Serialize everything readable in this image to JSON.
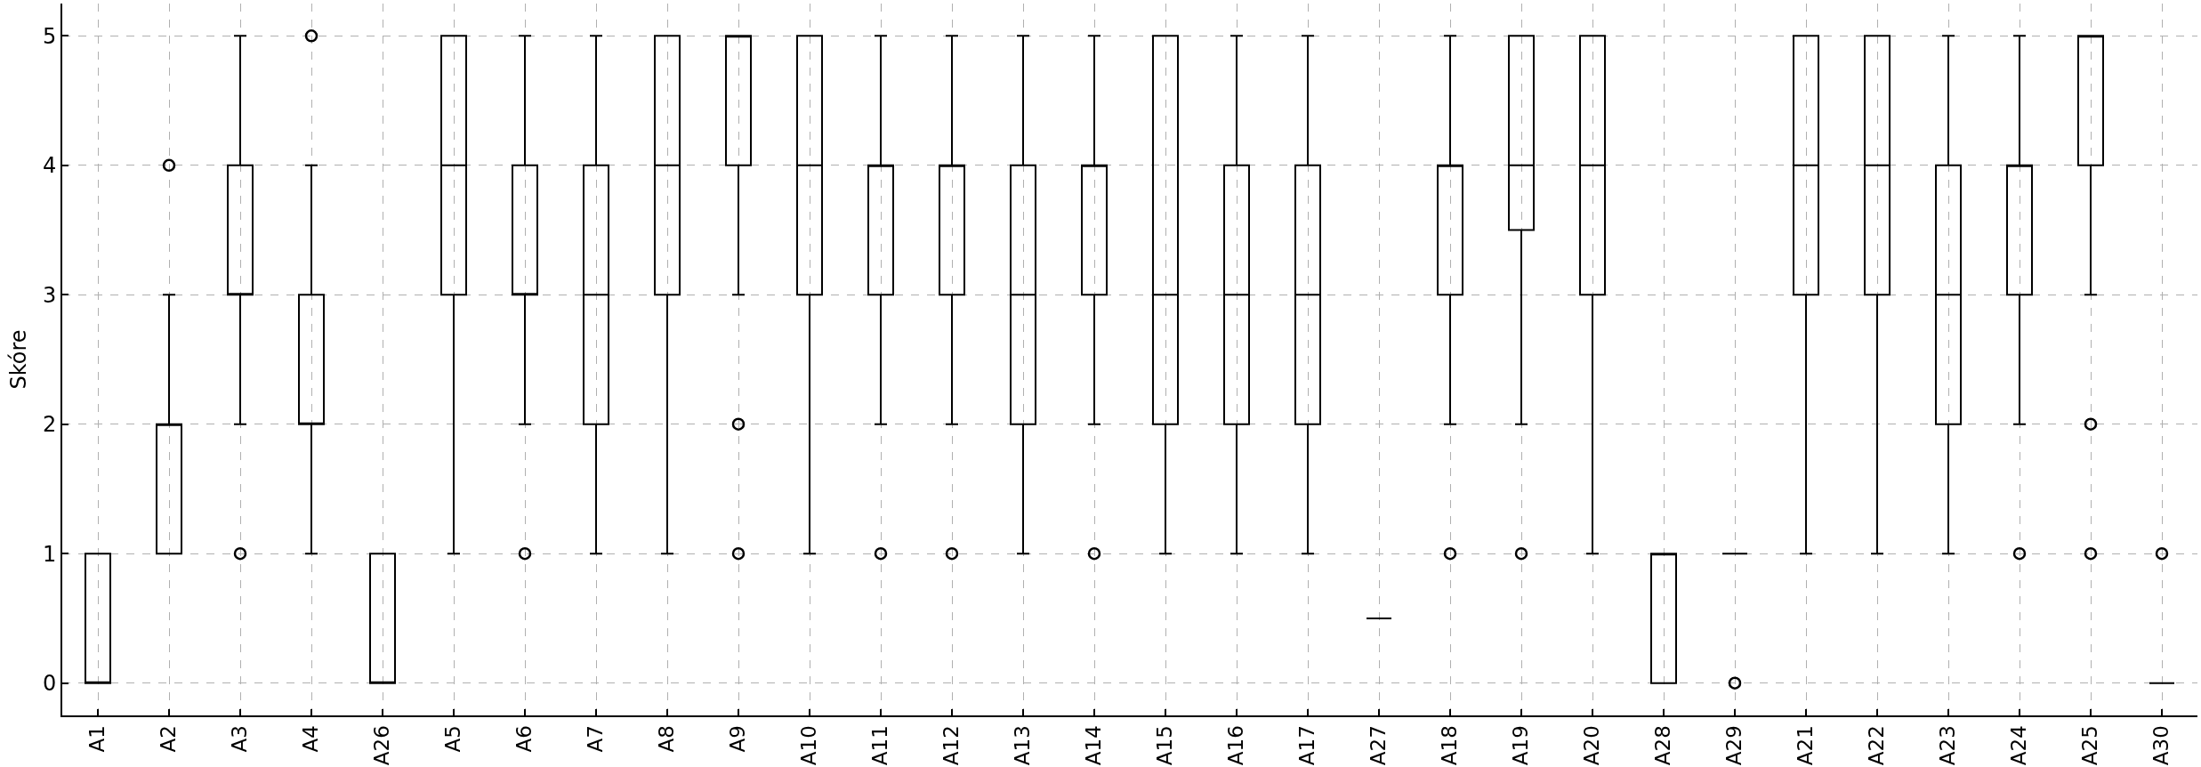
{
  "chart_data": {
    "type": "box",
    "ylabel": "Skóre",
    "color": "#000000",
    "marker": "circle",
    "categories": [
      "A1",
      "A2",
      "A3",
      "A4",
      "A26",
      "A5",
      "A6",
      "A7",
      "A8",
      "A9",
      "A10",
      "A11",
      "A12",
      "A13",
      "A14",
      "A15",
      "A16",
      "A17",
      "A27",
      "A18",
      "A19",
      "A20",
      "A28",
      "A29",
      "A21",
      "A22",
      "A23",
      "A24",
      "A25",
      "A30"
    ],
    "boxes": [
      {
        "low": 0,
        "q1": 0,
        "median": 0,
        "q3": 1,
        "high": 1
      },
      {
        "low": 1,
        "q1": 1,
        "median": 2,
        "q3": 2,
        "high": 3,
        "outliers": [
          4
        ]
      },
      {
        "low": 2,
        "q1": 3,
        "median": 3,
        "q3": 4,
        "high": 5,
        "outliers": [
          1
        ]
      },
      {
        "low": 1,
        "q1": 2,
        "median": 2,
        "q3": 3,
        "high": 4,
        "outliers": [
          5
        ]
      },
      {
        "low": 0,
        "q1": 0,
        "median": 0,
        "q3": 1,
        "high": 1
      },
      {
        "low": 1,
        "q1": 3,
        "median": 4,
        "q3": 5,
        "high": 5
      },
      {
        "low": 2,
        "q1": 3,
        "median": 3,
        "q3": 4,
        "high": 5,
        "outliers": [
          1
        ]
      },
      {
        "low": 1,
        "q1": 2,
        "median": 3,
        "q3": 4,
        "high": 5
      },
      {
        "low": 1,
        "q1": 3,
        "median": 4,
        "q3": 5,
        "high": 5
      },
      {
        "low": 3,
        "q1": 4,
        "median": 5,
        "q3": 5,
        "high": 5,
        "outliers": [
          2,
          1
        ]
      },
      {
        "low": 1,
        "q1": 3,
        "median": 4,
        "q3": 5,
        "high": 5
      },
      {
        "low": 2,
        "q1": 3,
        "median": 4,
        "q3": 4,
        "high": 5,
        "outliers": [
          1
        ]
      },
      {
        "low": 2,
        "q1": 3,
        "median": 4,
        "q3": 4,
        "high": 5,
        "outliers": [
          1
        ]
      },
      {
        "low": 1,
        "q1": 2,
        "median": 3,
        "q3": 4,
        "high": 5
      },
      {
        "low": 2,
        "q1": 3,
        "median": 4,
        "q3": 4,
        "high": 5,
        "outliers": [
          1
        ]
      },
      {
        "low": 1,
        "q1": 2,
        "median": 3,
        "q3": 5,
        "high": 5
      },
      {
        "low": 1,
        "q1": 2,
        "median": 3,
        "q3": 4,
        "high": 5
      },
      {
        "low": 1,
        "q1": 2,
        "median": 3,
        "q3": 4,
        "high": 5
      },
      {
        "low": 0.5,
        "q1": 0.5,
        "median": 0.5,
        "q3": 0.5,
        "high": 0.5
      },
      {
        "low": 2,
        "q1": 3,
        "median": 4,
        "q3": 4,
        "high": 5,
        "outliers": [
          1
        ]
      },
      {
        "low": 2,
        "q1": 3.5,
        "median": 4,
        "q3": 5,
        "high": 5,
        "outliers": [
          1
        ]
      },
      {
        "low": 1,
        "q1": 3,
        "median": 4,
        "q3": 5,
        "high": 5
      },
      {
        "low": 0,
        "q1": 0,
        "median": 1,
        "q3": 1,
        "high": 1
      },
      {
        "low": 1,
        "q1": 1,
        "median": 1,
        "q3": 1,
        "high": 1,
        "outliers": [
          0
        ]
      },
      {
        "low": 1,
        "q1": 3,
        "median": 4,
        "q3": 5,
        "high": 5
      },
      {
        "low": 1,
        "q1": 3,
        "median": 4,
        "q3": 5,
        "high": 5
      },
      {
        "low": 1,
        "q1": 2,
        "median": 3,
        "q3": 4,
        "high": 5
      },
      {
        "low": 2,
        "q1": 3,
        "median": 4,
        "q3": 4,
        "high": 5,
        "outliers": [
          1
        ]
      },
      {
        "low": 3,
        "q1": 4,
        "median": 5,
        "q3": 5,
        "high": 5,
        "outliers": [
          2,
          1
        ]
      },
      {
        "low": 0,
        "q1": 0,
        "median": 0,
        "q3": 0,
        "high": 0,
        "outliers": [
          1
        ]
      }
    ],
    "ylim": [
      -0.25,
      5.25
    ],
    "yticks": [
      0,
      1,
      2,
      3,
      4,
      5
    ],
    "grid": true
  }
}
